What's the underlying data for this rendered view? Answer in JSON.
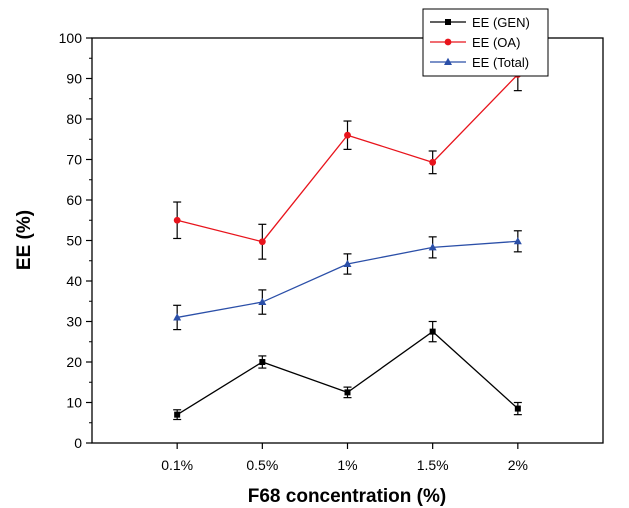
{
  "chart_data": {
    "type": "line",
    "title": "",
    "xlabel": "F68 concentration (%)",
    "ylabel": "EE (%)",
    "categories": [
      "0.1%",
      "0.5%",
      "1%",
      "1.5%",
      "2%"
    ],
    "ylim": [
      0,
      100
    ],
    "yticks": [
      0,
      10,
      20,
      30,
      40,
      50,
      60,
      70,
      80,
      90,
      100
    ],
    "grid": false,
    "legend_position": "top-right",
    "series": [
      {
        "name": "EE (GEN)",
        "color": "#000000",
        "marker": "square",
        "values": [
          7.0,
          20.0,
          12.5,
          27.5,
          8.5
        ],
        "errors": [
          1.2,
          1.5,
          1.3,
          2.5,
          1.5
        ]
      },
      {
        "name": "EE (OA)",
        "color": "#e8141c",
        "marker": "circle",
        "values": [
          55.0,
          49.7,
          76.0,
          69.3,
          91.0
        ],
        "errors": [
          4.5,
          4.3,
          3.5,
          2.8,
          4.0
        ]
      },
      {
        "name": "EE (Total)",
        "color": "#2b4fa8",
        "marker": "triangle",
        "values": [
          31.0,
          34.8,
          44.2,
          48.3,
          49.8
        ],
        "errors": [
          3.0,
          3.0,
          2.5,
          2.6,
          2.6
        ]
      }
    ]
  }
}
